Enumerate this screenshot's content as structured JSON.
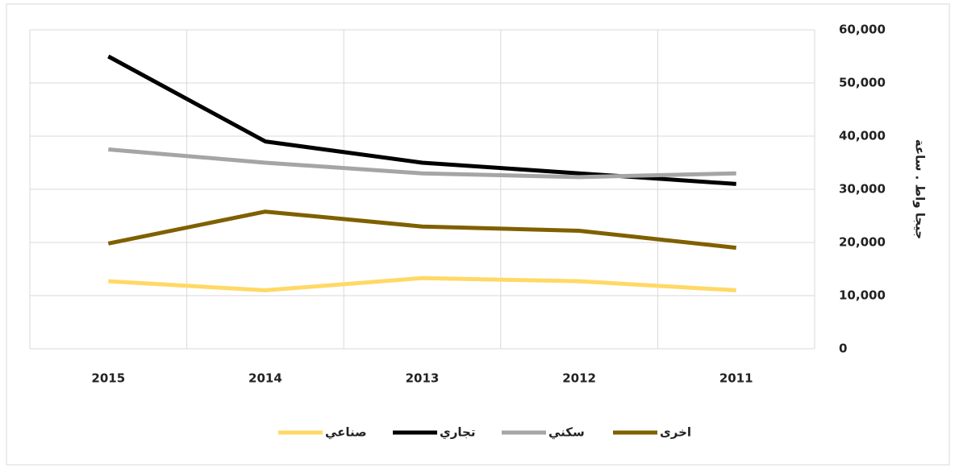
{
  "chart_data": {
    "type": "line",
    "y_label": "جيجا واط . ساعة",
    "categories": [
      "2015",
      "2014",
      "2013",
      "2012",
      "2011"
    ],
    "series": [
      {
        "name": "صناعي",
        "color": "#ffd966",
        "values": [
          12700,
          11000,
          13300,
          12700,
          11000
        ]
      },
      {
        "name": "تجاري",
        "color": "#000000",
        "values": [
          55000,
          39000,
          35000,
          33000,
          31000
        ]
      },
      {
        "name": "سكني",
        "color": "#a5a5a5",
        "values": [
          37500,
          35000,
          33000,
          32300,
          33000
        ]
      },
      {
        "name": "اخرى",
        "color": "#7f6000",
        "values": [
          19800,
          25800,
          23000,
          22200,
          19000
        ]
      }
    ],
    "ylim": [
      0,
      60000
    ],
    "yticks": [
      0,
      {
        "value": 10000,
        "label": "10,000"
      },
      {
        "value": 20000,
        "label": "20,000"
      },
      {
        "value": 30000,
        "label": "30,000"
      },
      {
        "value": 40000,
        "label": "40,000"
      },
      {
        "value": 50000,
        "label": "50,000"
      },
      {
        "value": 60000,
        "label": "60,000"
      }
    ],
    "grid": true,
    "legend": "bottom"
  }
}
